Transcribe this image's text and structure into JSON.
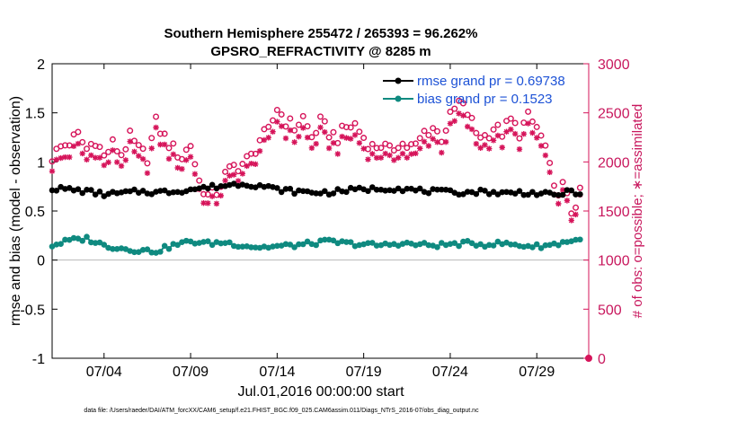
{
  "chart_data": {
    "type": "line",
    "title_line1": "Southern Hemisphere 255472 / 265393 = 96.262%",
    "title_line2": "GPSRO_REFRACTIVITY @ 8285 m",
    "xlabel": "Jul.01,2016 00:00:00 start",
    "ylabel_left": "rmse and bias (model - observation)",
    "ylabel_right": "# of obs: o=possible; ∗=assimilated",
    "x_tick_labels": [
      "07/04",
      "07/09",
      "07/14",
      "07/19",
      "07/24",
      "07/29"
    ],
    "x_tick_days": [
      4,
      9,
      14,
      19,
      24,
      29
    ],
    "xlim_days": [
      1,
      32
    ],
    "ylim_left": [
      -1,
      2
    ],
    "y_ticks_left": [
      "-1",
      "-0.5",
      "0",
      "0.5",
      "1",
      "1.5",
      "2"
    ],
    "ylim_right": [
      0,
      3000
    ],
    "y_ticks_right": [
      "0",
      "500",
      "1000",
      "1500",
      "2000",
      "2500",
      "3000"
    ],
    "legend": [
      {
        "label": "rmse grand pr = 0.69738",
        "color": "#000000"
      },
      {
        "label": "bias grand pr = 0.1523",
        "color": "#0f8a80"
      }
    ],
    "colors": {
      "rmse": "#000000",
      "bias": "#0f8a80",
      "obs": "#d6145a",
      "zero_line": "#b8b8b8"
    },
    "series_rmse_anchors": [
      [
        1.0,
        0.73
      ],
      [
        2.0,
        0.72
      ],
      [
        3.0,
        0.7
      ],
      [
        4.0,
        0.67
      ],
      [
        5.0,
        0.68
      ],
      [
        6.0,
        0.7
      ],
      [
        7.0,
        0.69
      ],
      [
        8.0,
        0.7
      ],
      [
        9.0,
        0.72
      ],
      [
        10.0,
        0.74
      ],
      [
        11.0,
        0.76
      ],
      [
        12.0,
        0.78
      ],
      [
        13.0,
        0.76
      ],
      [
        14.0,
        0.72
      ],
      [
        15.0,
        0.7
      ],
      [
        16.0,
        0.69
      ],
      [
        17.0,
        0.69
      ],
      [
        18.0,
        0.71
      ],
      [
        19.0,
        0.72
      ],
      [
        20.0,
        0.73
      ],
      [
        21.0,
        0.73
      ],
      [
        22.0,
        0.71
      ],
      [
        23.0,
        0.7
      ],
      [
        24.0,
        0.69
      ],
      [
        25.0,
        0.69
      ],
      [
        26.0,
        0.7
      ],
      [
        27.0,
        0.68
      ],
      [
        28.0,
        0.69
      ],
      [
        29.0,
        0.68
      ],
      [
        30.0,
        0.66
      ],
      [
        30.5,
        0.68
      ],
      [
        31.0,
        0.7
      ],
      [
        31.6,
        0.68
      ]
    ],
    "series_bias_anchors": [
      [
        1.0,
        0.15
      ],
      [
        2.0,
        0.2
      ],
      [
        3.0,
        0.22
      ],
      [
        4.0,
        0.15
      ],
      [
        5.0,
        0.12
      ],
      [
        6.0,
        0.1
      ],
      [
        7.0,
        0.09
      ],
      [
        8.0,
        0.15
      ],
      [
        9.0,
        0.19
      ],
      [
        10.0,
        0.17
      ],
      [
        11.0,
        0.18
      ],
      [
        12.0,
        0.15
      ],
      [
        13.0,
        0.13
      ],
      [
        14.0,
        0.14
      ],
      [
        15.0,
        0.15
      ],
      [
        16.0,
        0.17
      ],
      [
        17.0,
        0.19
      ],
      [
        18.0,
        0.17
      ],
      [
        19.0,
        0.16
      ],
      [
        20.0,
        0.15
      ],
      [
        21.0,
        0.17
      ],
      [
        22.0,
        0.16
      ],
      [
        23.0,
        0.15
      ],
      [
        24.0,
        0.16
      ],
      [
        25.0,
        0.17
      ],
      [
        26.0,
        0.16
      ],
      [
        27.0,
        0.17
      ],
      [
        28.0,
        0.15
      ],
      [
        29.0,
        0.14
      ],
      [
        30.0,
        0.16
      ],
      [
        31.0,
        0.2
      ],
      [
        31.6,
        0.2
      ]
    ],
    "series_possible_anchors": [
      [
        1.0,
        2050
      ],
      [
        1.5,
        2150
      ],
      [
        2.0,
        2200
      ],
      [
        2.5,
        2270
      ],
      [
        3.0,
        2130
      ],
      [
        3.5,
        2230
      ],
      [
        4.0,
        2050
      ],
      [
        4.5,
        2180
      ],
      [
        5.0,
        2080
      ],
      [
        5.5,
        2250
      ],
      [
        6.0,
        2120
      ],
      [
        6.5,
        2050
      ],
      [
        7.0,
        2400
      ],
      [
        7.5,
        2250
      ],
      [
        8.0,
        2130
      ],
      [
        8.5,
        2050
      ],
      [
        9.0,
        2180
      ],
      [
        9.5,
        1800
      ],
      [
        10.0,
        1650
      ],
      [
        10.5,
        1700
      ],
      [
        11.0,
        1860
      ],
      [
        11.5,
        1950
      ],
      [
        12.0,
        1980
      ],
      [
        12.5,
        2050
      ],
      [
        13.0,
        2230
      ],
      [
        13.5,
        2300
      ],
      [
        14.0,
        2550
      ],
      [
        14.5,
        2420
      ],
      [
        15.0,
        2350
      ],
      [
        15.5,
        2450
      ],
      [
        16.0,
        2250
      ],
      [
        16.5,
        2400
      ],
      [
        17.0,
        2300
      ],
      [
        17.5,
        2250
      ],
      [
        18.0,
        2350
      ],
      [
        18.5,
        2380
      ],
      [
        19.0,
        2250
      ],
      [
        19.5,
        2150
      ],
      [
        20.0,
        2180
      ],
      [
        20.5,
        2100
      ],
      [
        21.0,
        2200
      ],
      [
        21.5,
        2160
      ],
      [
        22.0,
        2150
      ],
      [
        22.5,
        2300
      ],
      [
        23.0,
        2350
      ],
      [
        23.5,
        2250
      ],
      [
        24.0,
        2450
      ],
      [
        24.5,
        2600
      ],
      [
        25.0,
        2500
      ],
      [
        25.5,
        2300
      ],
      [
        26.0,
        2260
      ],
      [
        26.5,
        2350
      ],
      [
        27.0,
        2300
      ],
      [
        27.5,
        2420
      ],
      [
        28.0,
        2300
      ],
      [
        28.5,
        2450
      ],
      [
        29.0,
        2350
      ],
      [
        29.5,
        2150
      ],
      [
        30.0,
        1700
      ],
      [
        30.5,
        1750
      ],
      [
        31.0,
        1500
      ],
      [
        31.6,
        1700
      ]
    ],
    "series_assimilated_anchors": [
      [
        1.0,
        1960
      ],
      [
        1.5,
        2040
      ],
      [
        2.0,
        2090
      ],
      [
        2.5,
        2160
      ],
      [
        3.0,
        2030
      ],
      [
        3.5,
        2120
      ],
      [
        4.0,
        1960
      ],
      [
        4.5,
        2080
      ],
      [
        5.0,
        1980
      ],
      [
        5.5,
        2150
      ],
      [
        6.0,
        2020
      ],
      [
        6.5,
        1960
      ],
      [
        7.0,
        2300
      ],
      [
        7.5,
        2150
      ],
      [
        8.0,
        2030
      ],
      [
        8.5,
        1960
      ],
      [
        9.0,
        2080
      ],
      [
        9.5,
        1720
      ],
      [
        10.0,
        1570
      ],
      [
        10.5,
        1620
      ],
      [
        11.0,
        1780
      ],
      [
        11.5,
        1860
      ],
      [
        12.0,
        1890
      ],
      [
        12.5,
        1960
      ],
      [
        13.0,
        2130
      ],
      [
        13.5,
        2200
      ],
      [
        14.0,
        2440
      ],
      [
        14.5,
        2310
      ],
      [
        15.0,
        2240
      ],
      [
        15.5,
        2340
      ],
      [
        16.0,
        2150
      ],
      [
        16.5,
        2300
      ],
      [
        17.0,
        2200
      ],
      [
        17.5,
        2150
      ],
      [
        18.0,
        2250
      ],
      [
        18.5,
        2270
      ],
      [
        19.0,
        2150
      ],
      [
        19.5,
        2060
      ],
      [
        20.0,
        2090
      ],
      [
        20.5,
        2010
      ],
      [
        21.0,
        2110
      ],
      [
        21.5,
        2070
      ],
      [
        22.0,
        2060
      ],
      [
        22.5,
        2200
      ],
      [
        23.0,
        2250
      ],
      [
        23.5,
        2150
      ],
      [
        24.0,
        2340
      ],
      [
        24.5,
        2480
      ],
      [
        25.0,
        2390
      ],
      [
        25.5,
        2200
      ],
      [
        26.0,
        2170
      ],
      [
        26.5,
        2250
      ],
      [
        27.0,
        2200
      ],
      [
        27.5,
        2320
      ],
      [
        28.0,
        2200
      ],
      [
        28.5,
        2340
      ],
      [
        29.0,
        2250
      ],
      [
        29.5,
        2060
      ],
      [
        30.0,
        1620
      ],
      [
        30.5,
        1680
      ],
      [
        31.0,
        1440
      ],
      [
        31.6,
        1640
      ]
    ]
  },
  "footnote": "data file: /Users/raeder/DAI/ATM_forcXX/CAM6_setup/f.e21.FHIST_BGC.f09_025.CAM6assim.011/Diags_NTrS_2016-07/obs_diag_output.nc"
}
